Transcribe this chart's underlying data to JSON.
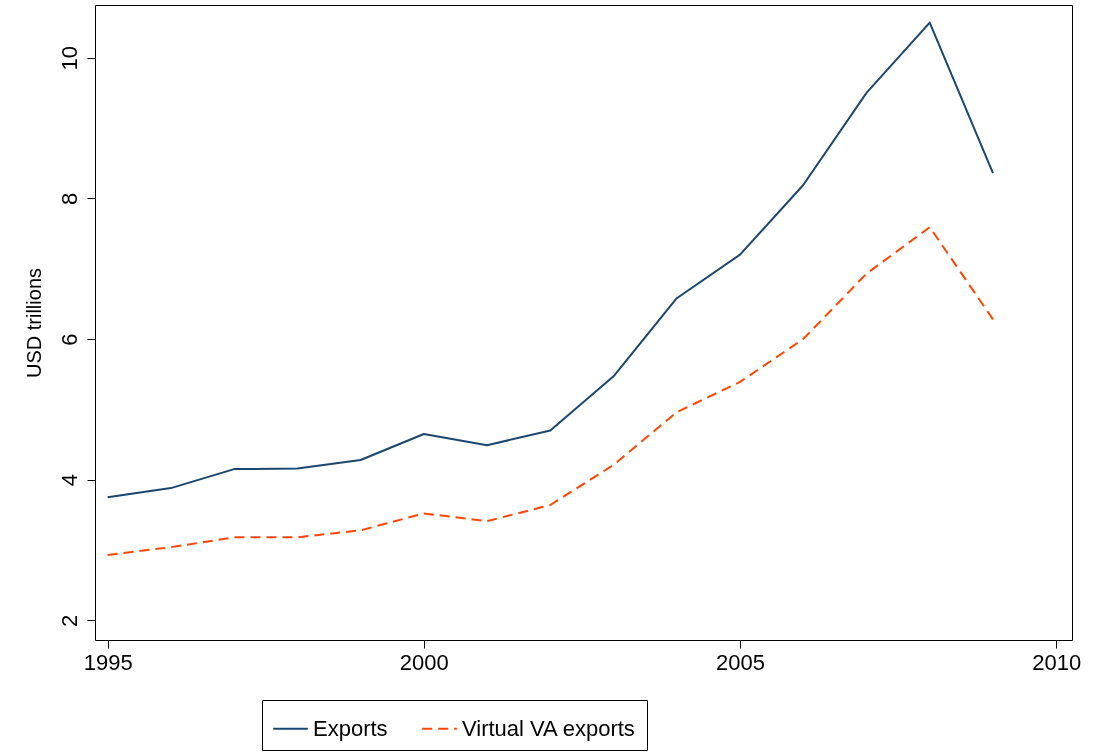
{
  "chart_data": {
    "type": "line",
    "ylabel": "USD trillions",
    "x": [
      1995,
      1996,
      1997,
      1998,
      1999,
      2000,
      2001,
      2002,
      2003,
      2004,
      2005,
      2006,
      2007,
      2008,
      2009
    ],
    "series": [
      {
        "name": "Exports",
        "color": "#1a476f",
        "line_style": "solid",
        "values": [
          3.75,
          3.88,
          4.15,
          4.16,
          4.28,
          4.65,
          4.49,
          4.7,
          5.47,
          6.58,
          7.2,
          8.19,
          9.5,
          10.5,
          8.36
        ]
      },
      {
        "name": "Virtual VA exports",
        "color": "#ff4500",
        "line_style": "dashed",
        "values": [
          2.93,
          3.04,
          3.18,
          3.18,
          3.28,
          3.52,
          3.41,
          3.64,
          4.21,
          4.96,
          5.39,
          6.0,
          6.93,
          7.59,
          6.28
        ]
      }
    ],
    "xlim": [
      1994.8,
      2010.25
    ],
    "xticks": [
      1995,
      2000,
      2005,
      2010
    ],
    "ylim": [
      1.72,
      10.75
    ],
    "yticks": [
      2,
      4,
      6,
      8,
      10
    ],
    "grid": false,
    "legend": "bottom",
    "marker": "none"
  }
}
